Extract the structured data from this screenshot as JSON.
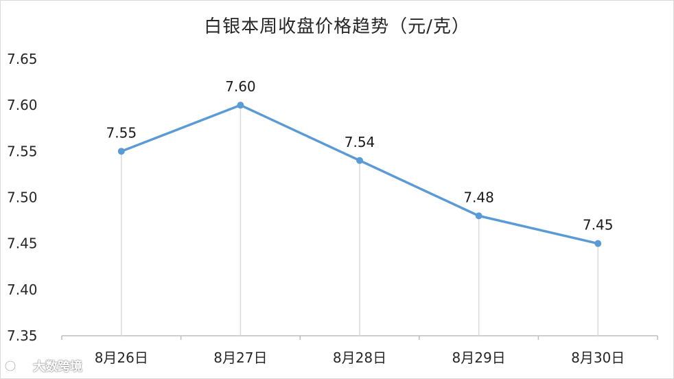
{
  "chart_data": {
    "type": "line",
    "title": "白银本周收盘价格趋势（元/克）",
    "categories": [
      "8月26日",
      "8月27日",
      "8月28日",
      "8月29日",
      "8月30日"
    ],
    "values": [
      7.55,
      7.6,
      7.54,
      7.48,
      7.45
    ],
    "data_labels": [
      "7.55",
      "7.60",
      "7.54",
      "7.48",
      "7.45"
    ],
    "y_ticks": [
      "7.35",
      "7.40",
      "7.45",
      "7.50",
      "7.55",
      "7.60",
      "7.65"
    ],
    "ylim": [
      7.35,
      7.65
    ],
    "xlabel": "",
    "ylabel": "",
    "grid": false,
    "drop_lines": true,
    "line_color": "#5b9bd5",
    "drop_line_color": "#d9d9d9",
    "axis_color": "#bfbfbf"
  },
  "watermark": {
    "text": "大数跨境"
  }
}
